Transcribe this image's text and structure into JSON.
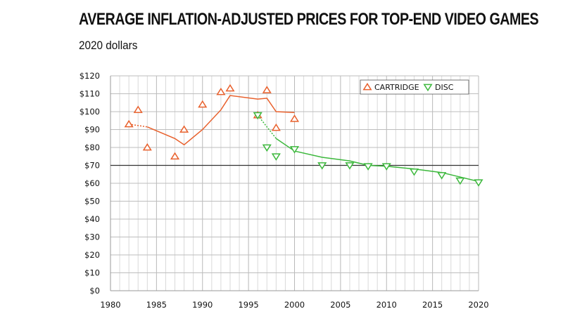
{
  "chart_data": {
    "type": "scatter",
    "title": "AVERAGE INFLATION-ADJUSTED PRICES FOR TOP-END VIDEO GAMES",
    "subtitle": "2020 dollars",
    "xlabel": "",
    "ylabel": "",
    "xlim": [
      1980,
      2020
    ],
    "ylim": [
      0,
      120
    ],
    "x_ticks": [
      "1980",
      "1985",
      "1990",
      "1995",
      "2000",
      "2005",
      "2010",
      "2015",
      "2020"
    ],
    "y_ticks": [
      "$0",
      "$10",
      "$20",
      "$30",
      "$40",
      "$50",
      "$60",
      "$70",
      "$80",
      "$90",
      "$100",
      "$110",
      "$120"
    ],
    "grid": true,
    "legend_position": "top-right",
    "reference_line": {
      "y": 70
    },
    "series": [
      {
        "name": "CARTRIDGE",
        "marker": "triangle-up",
        "color": "#e8602c",
        "points": [
          [
            1982,
            93
          ],
          [
            1983,
            101
          ],
          [
            1984,
            80
          ],
          [
            1987,
            75
          ],
          [
            1988,
            90
          ],
          [
            1990,
            104
          ],
          [
            1992,
            111
          ],
          [
            1993,
            113
          ],
          [
            1996,
            98
          ],
          [
            1997,
            112
          ],
          [
            1998,
            91
          ],
          [
            2000,
            96
          ]
        ],
        "trend_dashed": [
          [
            1982,
            93
          ],
          [
            1984,
            91.5
          ]
        ],
        "trend": [
          [
            1984,
            91.5
          ],
          [
            1987,
            85
          ],
          [
            1988,
            81.5
          ],
          [
            1990,
            90
          ],
          [
            1992,
            101
          ],
          [
            1993,
            109
          ],
          [
            1996,
            107
          ],
          [
            1997,
            107.5
          ],
          [
            1998,
            100
          ],
          [
            2000,
            99.5
          ]
        ]
      },
      {
        "name": "DISC",
        "marker": "triangle-down",
        "color": "#3cb83c",
        "points": [
          [
            1996,
            98
          ],
          [
            1997,
            80
          ],
          [
            1998,
            75
          ],
          [
            2000,
            79
          ],
          [
            2003,
            70
          ],
          [
            2006,
            70
          ],
          [
            2008,
            69.5
          ],
          [
            2010,
            69.5
          ],
          [
            2013,
            66.5
          ],
          [
            2016,
            64.5
          ],
          [
            2018,
            61.5
          ],
          [
            2020,
            60.5
          ]
        ],
        "trend_dashed": [
          [
            1996,
            98
          ],
          [
            1998,
            85
          ]
        ],
        "trend": [
          [
            1998,
            85
          ],
          [
            2000,
            78
          ],
          [
            2003,
            74.5
          ],
          [
            2006,
            72.5
          ],
          [
            2008,
            70
          ],
          [
            2010,
            69.5
          ],
          [
            2013,
            68
          ],
          [
            2016,
            66
          ],
          [
            2018,
            63.5
          ],
          [
            2020,
            61
          ]
        ]
      }
    ]
  }
}
